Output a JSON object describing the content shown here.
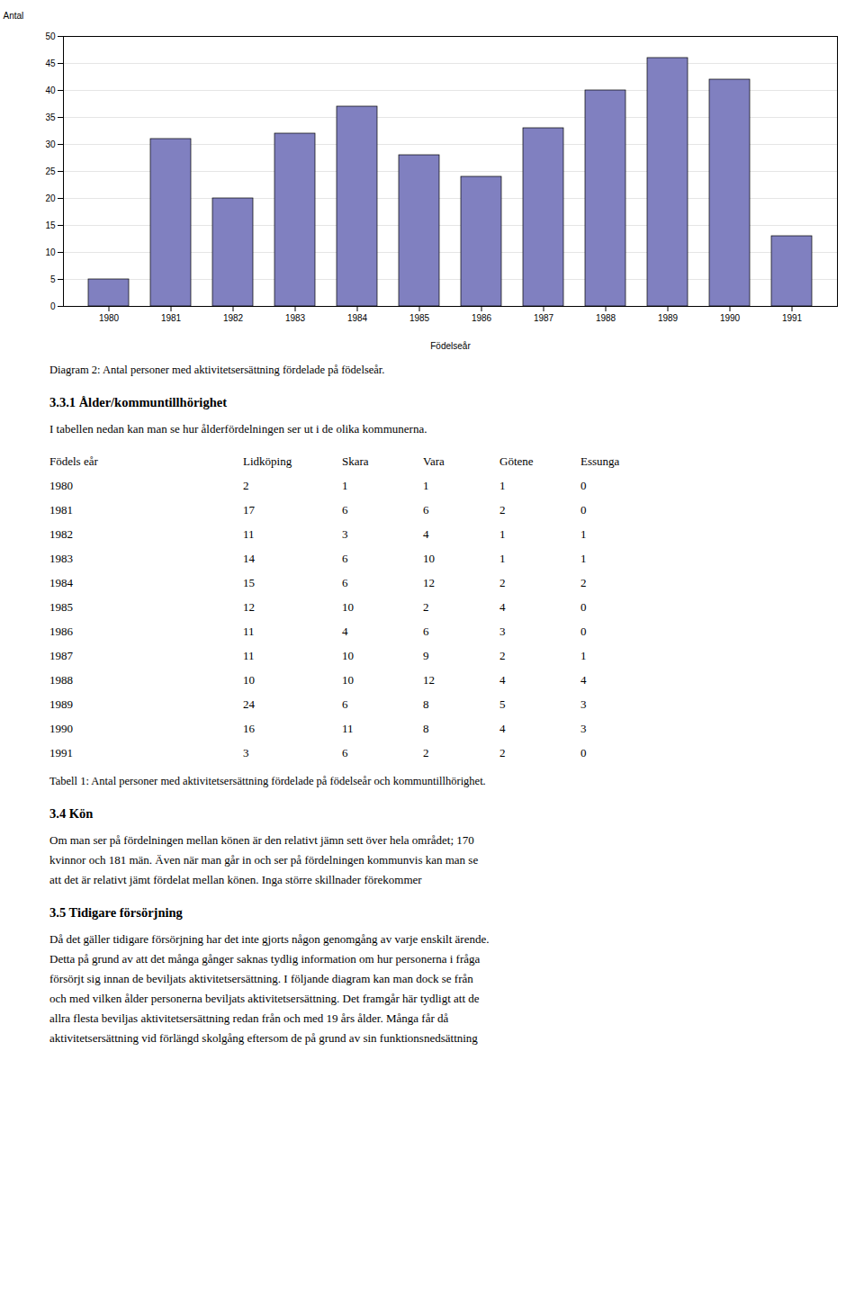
{
  "chart_data": {
    "type": "bar",
    "categories": [
      1980,
      1981,
      1982,
      1983,
      1984,
      1985,
      1986,
      1987,
      1988,
      1989,
      1990,
      1991
    ],
    "values": [
      5,
      31,
      20,
      32,
      37,
      28,
      24,
      33,
      40,
      46,
      42,
      13
    ],
    "color": "#8080C0",
    "xlabel": "Födelseår",
    "ylabel": "Antal",
    "ylim": [
      0,
      50
    ],
    "yticks": [
      0,
      5,
      10,
      15,
      20,
      25,
      30,
      35,
      40,
      45,
      50
    ],
    "grid": true
  },
  "annotations": [
    "Diagram 2: Antal personer med aktivitetsersättning fördelade på födelseår.",
    "3.3.1 Ålder/kommuntillhörighet",
    "I tabellen nedan kan man se hur ålderfördelningen ser ut i de olika kommunerna.",
    "Tabell 1: Antal personer med aktivitetsersättning fördelade på födelseår och kommuntillhörighet.",
    "3.4 Kön",
    "Om man ser på fördelningen mellan könen är den relativt jämn sett över hela området; 170",
    "kvinnor och 181 män. Även när man går in och ser på fördelningen kommunvis kan man se",
    "att det är relativt jämt fördelat mellan könen. Inga större skillnader förekommer",
    "3.5 Tidigare försörjning",
    "Då det gäller tidigare försörjning har det inte gjorts någon genomgång av varje enskilt ärende.",
    "Detta på grund av att det många gånger saknas tydlig information om hur personerna i fråga",
    "försörjt sig innan de beviljats aktivitetsersättning. I följande diagram kan man dock se från",
    "och med vilken ålder personerna beviljats aktivitetsersättning. Det framgår här tydligt att de",
    "allra flesta beviljas aktivitetsersättning redan från och med 19 års ålder. Många får då",
    "aktivitetsersättning vid förlängd skolgång eftersom de på grund av sin funktionsnedsättning"
  ],
  "table": {
    "headers": [
      "Födels eår",
      "Lidköping",
      "Skara",
      "Vara",
      "Götene",
      "Essunga"
    ],
    "rows": [
      [
        1980,
        2,
        1,
        1,
        1,
        0
      ],
      [
        1981,
        17,
        6,
        6,
        2,
        0
      ],
      [
        1982,
        11,
        3,
        4,
        1,
        1
      ],
      [
        1983,
        14,
        6,
        10,
        1,
        1
      ],
      [
        1984,
        15,
        6,
        12,
        2,
        2
      ],
      [
        1985,
        12,
        10,
        2,
        4,
        0
      ],
      [
        1986,
        11,
        4,
        6,
        3,
        0
      ],
      [
        1987,
        11,
        10,
        9,
        2,
        1
      ],
      [
        1988,
        10,
        10,
        12,
        4,
        4
      ],
      [
        1989,
        24,
        6,
        8,
        5,
        3
      ],
      [
        1990,
        16,
        11,
        8,
        4,
        3
      ],
      [
        1991,
        3,
        6,
        2,
        2,
        0
      ]
    ]
  }
}
